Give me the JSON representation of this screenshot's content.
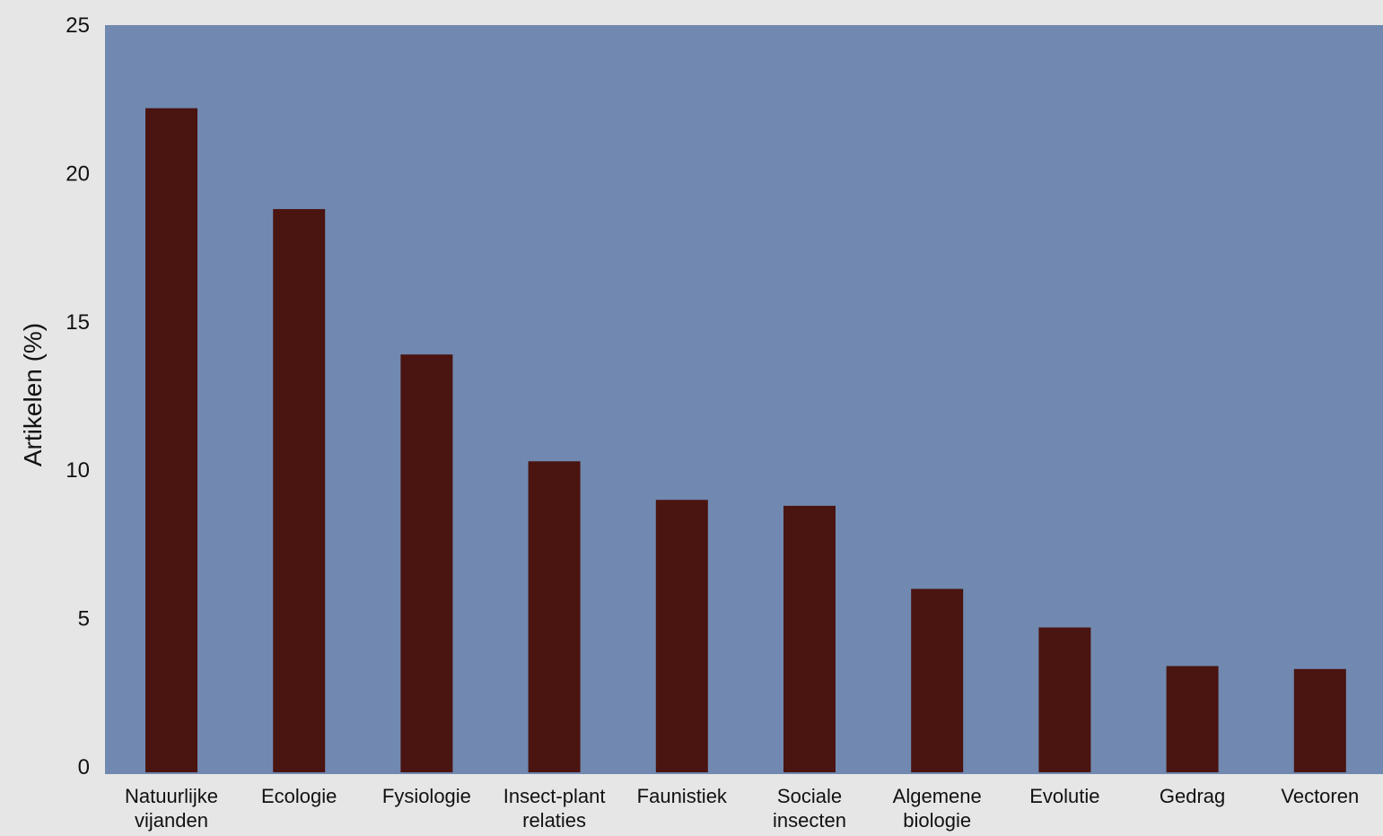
{
  "chart_data": {
    "type": "bar",
    "ylabel": "Artikelen (%)",
    "xlabel": "",
    "ylim": [
      0,
      25
    ],
    "yticks": [
      0,
      5,
      10,
      15,
      20,
      25
    ],
    "grid": false,
    "categories": [
      [
        "Natuurlijke",
        "vijanden"
      ],
      [
        "Ecologie"
      ],
      [
        "Fysiologie"
      ],
      [
        "Insect-plant",
        "relaties"
      ],
      [
        "Faunistiek"
      ],
      [
        "Sociale",
        "insecten"
      ],
      [
        "Algemene",
        "biologie"
      ],
      [
        "Evolutie"
      ],
      [
        "Gedrag"
      ],
      [
        "Vectoren"
      ]
    ],
    "values": [
      22.2,
      18.8,
      13.9,
      10.3,
      9.0,
      8.8,
      6.0,
      4.7,
      3.4,
      3.3
    ],
    "colors": {
      "plot_background": "#7189b0",
      "bar": "#4a1410",
      "page_background": "#e6e6e6"
    }
  }
}
